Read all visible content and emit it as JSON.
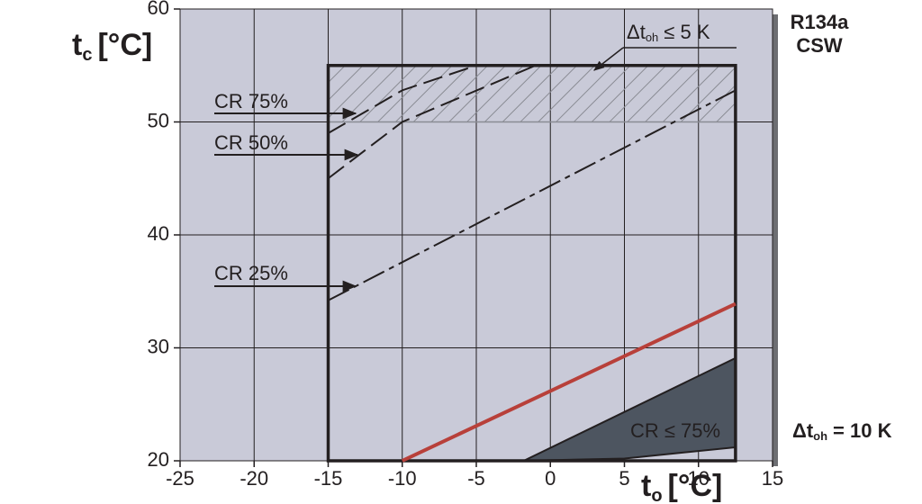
{
  "chart_data": {
    "type": "line",
    "title": "R134a",
    "subtitle": "CSW",
    "x_label": {
      "main": "t",
      "sub": "o",
      "unit": "[°C]"
    },
    "y_label": {
      "main": "t",
      "sub": "c",
      "unit": "[°C]"
    },
    "xlim": [
      -25,
      15
    ],
    "ylim": [
      20,
      60
    ],
    "xticks": [
      -25,
      -20,
      -15,
      -10,
      -5,
      0,
      5,
      10,
      15
    ],
    "yticks": [
      20,
      30,
      40,
      50,
      60
    ],
    "grid": true,
    "series": [
      {
        "kind": "hatch",
        "color": "#8a8c94",
        "x": [
          -15,
          12.5,
          12.5,
          -15
        ],
        "values": [
          50,
          50,
          55,
          55
        ]
      },
      {
        "kind": "region",
        "name": "CR ≤ 75%",
        "color": "#4d5560",
        "x": [
          -1.8,
          12.5,
          12.5,
          5
        ],
        "values": [
          20,
          29.1,
          21.2,
          20.2
        ]
      },
      {
        "kind": "envelope",
        "color": "#231f20",
        "x": [
          -15,
          -15,
          12.5,
          12.5
        ],
        "values": [
          20,
          55,
          55,
          20
        ]
      },
      {
        "kind": "line",
        "name": "CR 75%",
        "style": "dashed",
        "color": "#231f20",
        "x": [
          -15,
          -10,
          -5
        ],
        "values": [
          49,
          52.8,
          55
        ]
      },
      {
        "kind": "line",
        "name": "CR 50%",
        "style": "dashed",
        "color": "#231f20",
        "x": [
          -15,
          -10,
          -1
        ],
        "values": [
          45,
          50,
          55
        ]
      },
      {
        "kind": "line",
        "name": "CR 25%",
        "style": "dashdot",
        "color": "#231f20",
        "x": [
          -15,
          12.5
        ],
        "values": [
          34.2,
          52.8
        ]
      },
      {
        "kind": "line",
        "style": "solid",
        "color": "#b8403a",
        "x": [
          -10,
          12.5
        ],
        "values": [
          20,
          33.9
        ]
      }
    ],
    "annotations": {
      "superheat_limit": {
        "prefix": "Δt",
        "sub": "oh",
        "suffix": "≤ 5 K"
      },
      "superheat": {
        "prefix": "Δt",
        "sub": "oh",
        "suffix": "= 10 K"
      }
    }
  }
}
